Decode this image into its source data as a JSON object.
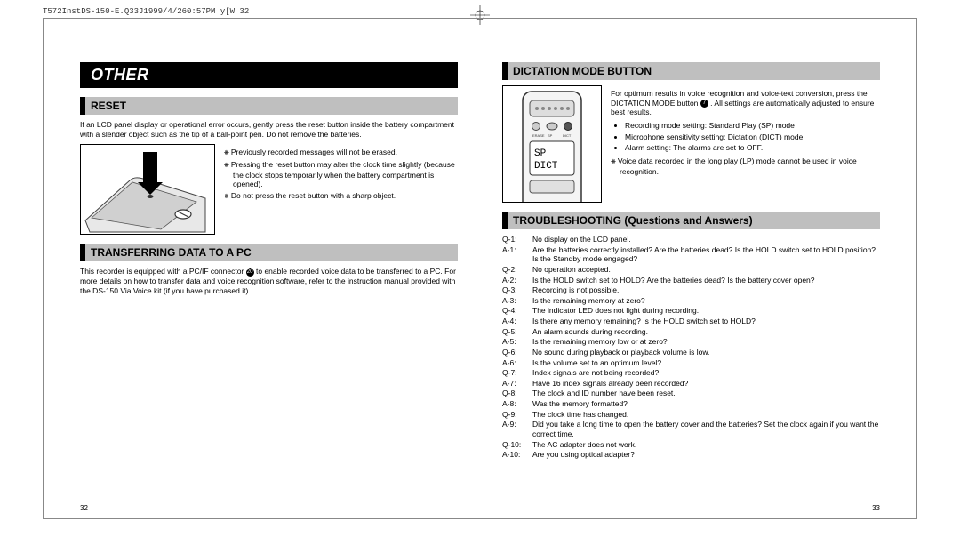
{
  "header": {
    "job_line": "T572InstDS-150-E.Q33J1999/4/260:57PM y[W 32"
  },
  "left": {
    "section_title": "OTHER",
    "reset": {
      "heading": "RESET",
      "intro": "If an LCD panel display or operational error occurs, gently press the reset button inside the battery compartment with a slender object such as the tip of a ball-point pen. Do not remove the batteries.",
      "notes": [
        "Previously recorded messages will not be erased.",
        "Pressing the reset button may alter the clock time slightly (because the clock stops temporarily when the battery compartment is opened).",
        "Do not press the reset button with a sharp object."
      ]
    },
    "transfer": {
      "heading": "TRANSFERRING DATA TO A PC",
      "body_pre": "This recorder is equipped with a PC/IF connector ",
      "body_post": " to enable recorded voice data to be transferred to a PC. For more details on how to transfer data and voice recognition software, refer to the instruction manual provided with the DS-150 Via Voice kit (if you have purchased it)."
    },
    "page_number": "32"
  },
  "right": {
    "dictation": {
      "heading": "DICTATION MODE BUTTON",
      "body_pre": "For optimum results in voice recognition and voice-text conversion, press the DICTATION MODE button ",
      "body_post": ". All settings are automatically adjusted to ensure best results.",
      "bullets": [
        "Recording mode setting: Standard Play (SP) mode",
        "Microphone sensitivity setting: Dictation (DICT) mode",
        "Alarm setting: The alarms are set to OFF."
      ],
      "note": "Voice data recorded in the long play (LP) mode cannot be used in voice recognition.",
      "display_line1": "SP",
      "display_line2": "DICT"
    },
    "troubleshooting": {
      "heading": "TROUBLESHOOTING (Questions and Answers)",
      "items": [
        {
          "q": "Q-1:",
          "qt": "No display on the LCD panel.",
          "a": "A-1:",
          "at": "Are the batteries correctly installed? Are the batteries dead? Is the HOLD switch set to HOLD position? Is the Standby mode engaged?"
        },
        {
          "q": "Q-2:",
          "qt": "No operation accepted.",
          "a": "A-2:",
          "at": "Is the HOLD switch set to HOLD? Are the batteries dead? Is the battery cover open?"
        },
        {
          "q": "Q-3:",
          "qt": "Recording is not possible.",
          "a": "A-3:",
          "at": "Is the remaining memory at zero?"
        },
        {
          "q": "Q-4:",
          "qt": "The indicator LED does not light during recording.",
          "a": "A-4:",
          "at": "Is there any memory remaining? Is the HOLD switch set to HOLD?"
        },
        {
          "q": "Q-5:",
          "qt": "An alarm sounds during recording.",
          "a": "A-5:",
          "at": "Is the remaining memory low or at zero?"
        },
        {
          "q": "Q-6:",
          "qt": "No sound during playback or playback volume is low.",
          "a": "A-6:",
          "at": "Is the volume set to an optimum level?"
        },
        {
          "q": "Q-7:",
          "qt": "Index signals are not being recorded?",
          "a": "A-7:",
          "at": "Have 16 index signals already been recorded?"
        },
        {
          "q": "Q-8:",
          "qt": "The clock and ID number have been reset.",
          "a": "A-8:",
          "at": "Was the memory formatted?"
        },
        {
          "q": "Q-9:",
          "qt": "The clock time has changed.",
          "a": "A-9:",
          "at": "Did you take a long time to open the battery cover and the batteries? Set the clock again if you want the correct time."
        },
        {
          "q": "Q-10:",
          "qt": "The AC adapter does not work.",
          "a": "A-10:",
          "at": "Are you using optical adapter?"
        }
      ]
    },
    "page_number": "33"
  },
  "colors": {
    "black": "#000000",
    "grey_bar": "#bfbfbf",
    "frame": "#888888"
  }
}
